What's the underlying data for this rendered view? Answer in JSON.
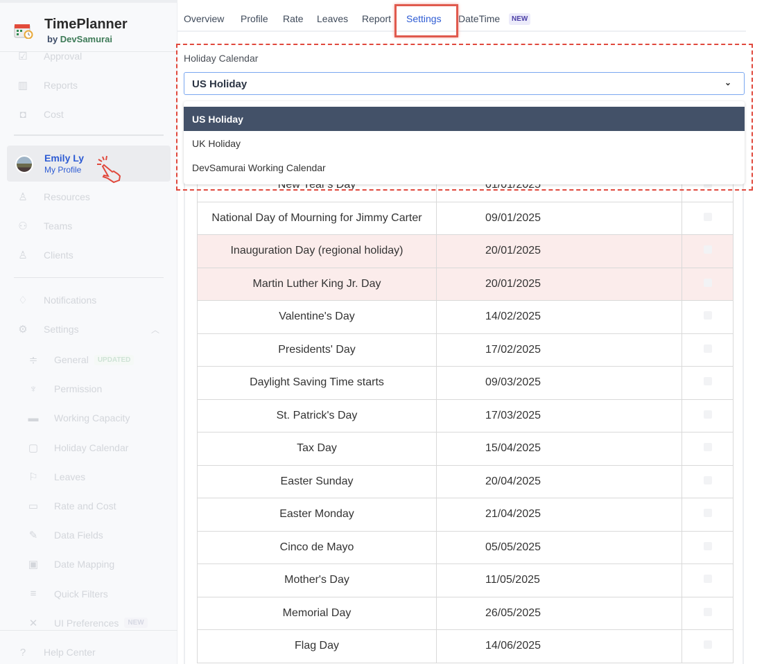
{
  "app": {
    "title": "TimePlanner",
    "by": "by",
    "company": "DevSamurai"
  },
  "sidebar": {
    "items": [
      {
        "label": "Approval",
        "icon": "check-square-icon"
      },
      {
        "label": "Reports",
        "icon": "bar-chart-icon"
      },
      {
        "label": "Cost",
        "icon": "money-bag-icon"
      },
      {
        "label": "Resources",
        "icon": "user-icon"
      },
      {
        "label": "Teams",
        "icon": "users-icon"
      },
      {
        "label": "Clients",
        "icon": "client-icon"
      },
      {
        "label": "Notifications",
        "icon": "bell-icon"
      },
      {
        "label": "Settings",
        "icon": "gear-icon"
      }
    ],
    "settings_items": [
      {
        "label": "General",
        "badge": "UPDATED",
        "icon": "sliders-icon"
      },
      {
        "label": "Permission",
        "icon": "hierarchy-icon"
      },
      {
        "label": "Working Capacity",
        "icon": "capacity-icon"
      },
      {
        "label": "Holiday Calendar",
        "icon": "calendar-icon"
      },
      {
        "label": "Leaves",
        "icon": "flag-icon"
      },
      {
        "label": "Rate and Cost",
        "icon": "rate-icon"
      },
      {
        "label": "Data Fields",
        "icon": "pen-icon"
      },
      {
        "label": "Date Mapping",
        "icon": "date-mapping-icon"
      },
      {
        "label": "Quick Filters",
        "icon": "filter-icon"
      },
      {
        "label": "UI Preferences",
        "badge": "NEW",
        "icon": "tools-icon"
      }
    ],
    "help": "Help Center",
    "profile": {
      "name": "Emily Ly",
      "link": "My Profile"
    }
  },
  "tabs": [
    {
      "label": "Overview"
    },
    {
      "label": "Profile"
    },
    {
      "label": "Rate"
    },
    {
      "label": "Leaves"
    },
    {
      "label": "Report"
    },
    {
      "label": "Settings",
      "active": true
    },
    {
      "label": "DateTime",
      "badge": "NEW"
    }
  ],
  "holiday": {
    "label": "Holiday Calendar",
    "selected": "US Holiday",
    "options": [
      "US Holiday",
      "UK Holiday",
      "DevSamurai Working Calendar"
    ]
  },
  "table": {
    "rows": [
      {
        "name": "New Year's Day",
        "date": "01/01/2025"
      },
      {
        "name": "National Day of Mourning for Jimmy Carter",
        "date": "09/01/2025"
      },
      {
        "name": "Inauguration Day (regional holiday)",
        "date": "20/01/2025",
        "highlight": true
      },
      {
        "name": "Martin Luther King Jr. Day",
        "date": "20/01/2025",
        "highlight": true
      },
      {
        "name": "Valentine's Day",
        "date": "14/02/2025"
      },
      {
        "name": "Presidents' Day",
        "date": "17/02/2025"
      },
      {
        "name": "Daylight Saving Time starts",
        "date": "09/03/2025"
      },
      {
        "name": "St. Patrick's Day",
        "date": "17/03/2025"
      },
      {
        "name": "Tax Day",
        "date": "15/04/2025"
      },
      {
        "name": "Easter Sunday",
        "date": "20/04/2025"
      },
      {
        "name": "Easter Monday",
        "date": "21/04/2025"
      },
      {
        "name": "Cinco de Mayo",
        "date": "05/05/2025"
      },
      {
        "name": "Mother's Day",
        "date": "11/05/2025"
      },
      {
        "name": "Memorial Day",
        "date": "26/05/2025"
      },
      {
        "name": "Flag Day",
        "date": "14/06/2025"
      }
    ]
  },
  "colors": {
    "accent": "#2d5bd3",
    "annotation": "#e0483c",
    "selected_option": "#435168",
    "highlight_row": "#fbeceb"
  }
}
